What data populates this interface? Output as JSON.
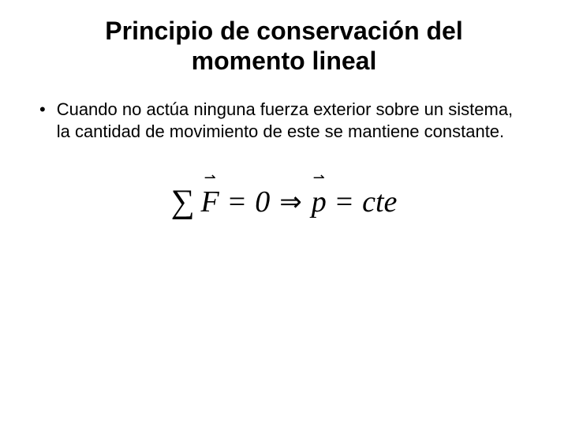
{
  "title": "Principio de conservación del momento lineal",
  "bullet_symbol": "•",
  "body_text": "Cuando no actúa ninguna fuerza exterior sobre un sistema, la cantidad de movimiento de este se mantiene constante.",
  "formula": {
    "sigma": "∑",
    "F_arrow": "⇀",
    "F": "F",
    "equals1": "=",
    "zero": "0",
    "implies": "⇒",
    "p_arrow": "⇀",
    "p": "p",
    "equals2": "=",
    "cte": "cte"
  },
  "colors": {
    "background": "#ffffff",
    "text": "#000000"
  },
  "fonts": {
    "title_size": 32,
    "body_size": 22,
    "formula_size": 38
  }
}
